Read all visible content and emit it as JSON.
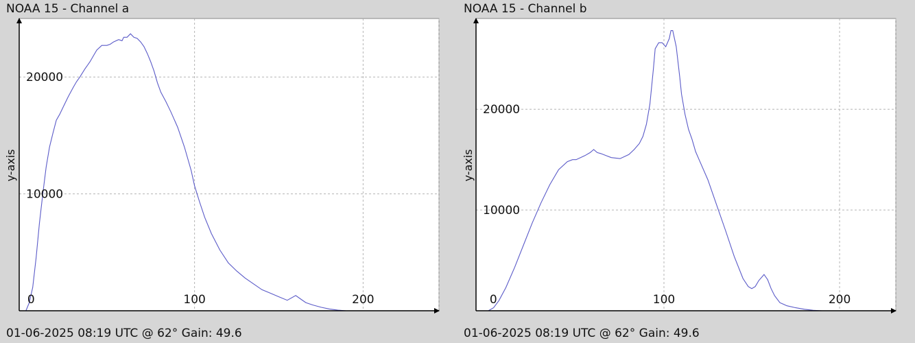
{
  "panels": [
    {
      "title": "NOAA 15 - Channel a",
      "footer": "01-06-2025 08:19 UTC @ 62° Gain: 49.6"
    },
    {
      "title": "NOAA 15 - Channel b",
      "footer": "01-06-2025 08:19 UTC @ 62° Gain: 49.6"
    }
  ],
  "colors": {
    "background": "#d6d6d6",
    "plot_background": "#ffffff",
    "line": "#5a5ac8",
    "grid": "#b4b4b4",
    "axis": "#000000"
  },
  "chart_data": [
    {
      "type": "line",
      "title": "NOAA 15 - Channel a",
      "xlabel": "",
      "ylabel": "y-axis",
      "xlim": [
        -4,
        245
      ],
      "ylim": [
        0,
        25000
      ],
      "xticks": [
        0,
        100,
        200
      ],
      "yticks": [
        10000,
        20000
      ],
      "grid": true,
      "legend": "none",
      "series": [
        {
          "x": [
            0,
            2,
            4,
            6,
            8,
            10,
            12,
            14,
            16,
            18,
            20,
            22,
            25,
            28,
            30,
            32,
            35,
            38,
            40,
            42,
            45,
            48,
            50,
            52,
            55,
            57,
            58,
            60,
            62,
            64,
            66,
            68,
            70,
            72,
            74,
            76,
            78,
            80,
            83,
            86,
            90,
            94,
            98,
            100,
            103,
            106,
            110,
            115,
            120,
            125,
            130,
            135,
            140,
            145,
            150,
            155,
            160,
            163,
            166,
            170,
            175,
            180,
            185,
            190
          ],
          "y": [
            0,
            700,
            2000,
            4500,
            7500,
            10000,
            12300,
            14000,
            15200,
            16300,
            16800,
            17400,
            18300,
            19100,
            19600,
            20000,
            20700,
            21300,
            21800,
            22300,
            22700,
            22700,
            22800,
            23000,
            23200,
            23100,
            23400,
            23400,
            23700,
            23400,
            23300,
            23000,
            22600,
            22000,
            21300,
            20500,
            19500,
            18700,
            17900,
            17000,
            15700,
            14000,
            12000,
            10700,
            9300,
            8000,
            6600,
            5200,
            4100,
            3400,
            2800,
            2300,
            1800,
            1500,
            1200,
            900,
            1300,
            1000,
            700,
            500,
            300,
            150,
            50,
            0
          ]
        }
      ]
    },
    {
      "type": "line",
      "title": "NOAA 15 - Channel b",
      "xlabel": "",
      "ylabel": "y-axis",
      "xlim": [
        -7,
        232
      ],
      "ylim": [
        0,
        29000
      ],
      "xticks": [
        0,
        100,
        200
      ],
      "yticks": [
        10000,
        20000
      ],
      "grid": true,
      "legend": "none",
      "series": [
        {
          "x": [
            0,
            3,
            6,
            10,
            15,
            20,
            25,
            30,
            35,
            40,
            45,
            48,
            50,
            55,
            58,
            60,
            62,
            64,
            67,
            70,
            75,
            80,
            83,
            86,
            88,
            90,
            92,
            94,
            95,
            97,
            99,
            101,
            103,
            104,
            105,
            107,
            109,
            110,
            112,
            114,
            116,
            118,
            120,
            125,
            130,
            135,
            140,
            145,
            148,
            150,
            152,
            154,
            156,
            157,
            159,
            161,
            163,
            166,
            170,
            175,
            180,
            185,
            190
          ],
          "y": [
            0,
            300,
            1000,
            2300,
            4300,
            6500,
            8700,
            10700,
            12500,
            14000,
            14800,
            15000,
            15000,
            15400,
            15700,
            16000,
            15700,
            15600,
            15400,
            15200,
            15100,
            15500,
            16000,
            16600,
            17300,
            18500,
            20500,
            24000,
            26000,
            26600,
            26600,
            26200,
            27000,
            27800,
            27800,
            26200,
            23200,
            21500,
            19500,
            18000,
            17000,
            15800,
            15000,
            13000,
            10500,
            8000,
            5400,
            3200,
            2400,
            2200,
            2400,
            3000,
            3400,
            3600,
            3100,
            2200,
            1500,
            800,
            500,
            300,
            150,
            50,
            0
          ]
        }
      ]
    }
  ]
}
